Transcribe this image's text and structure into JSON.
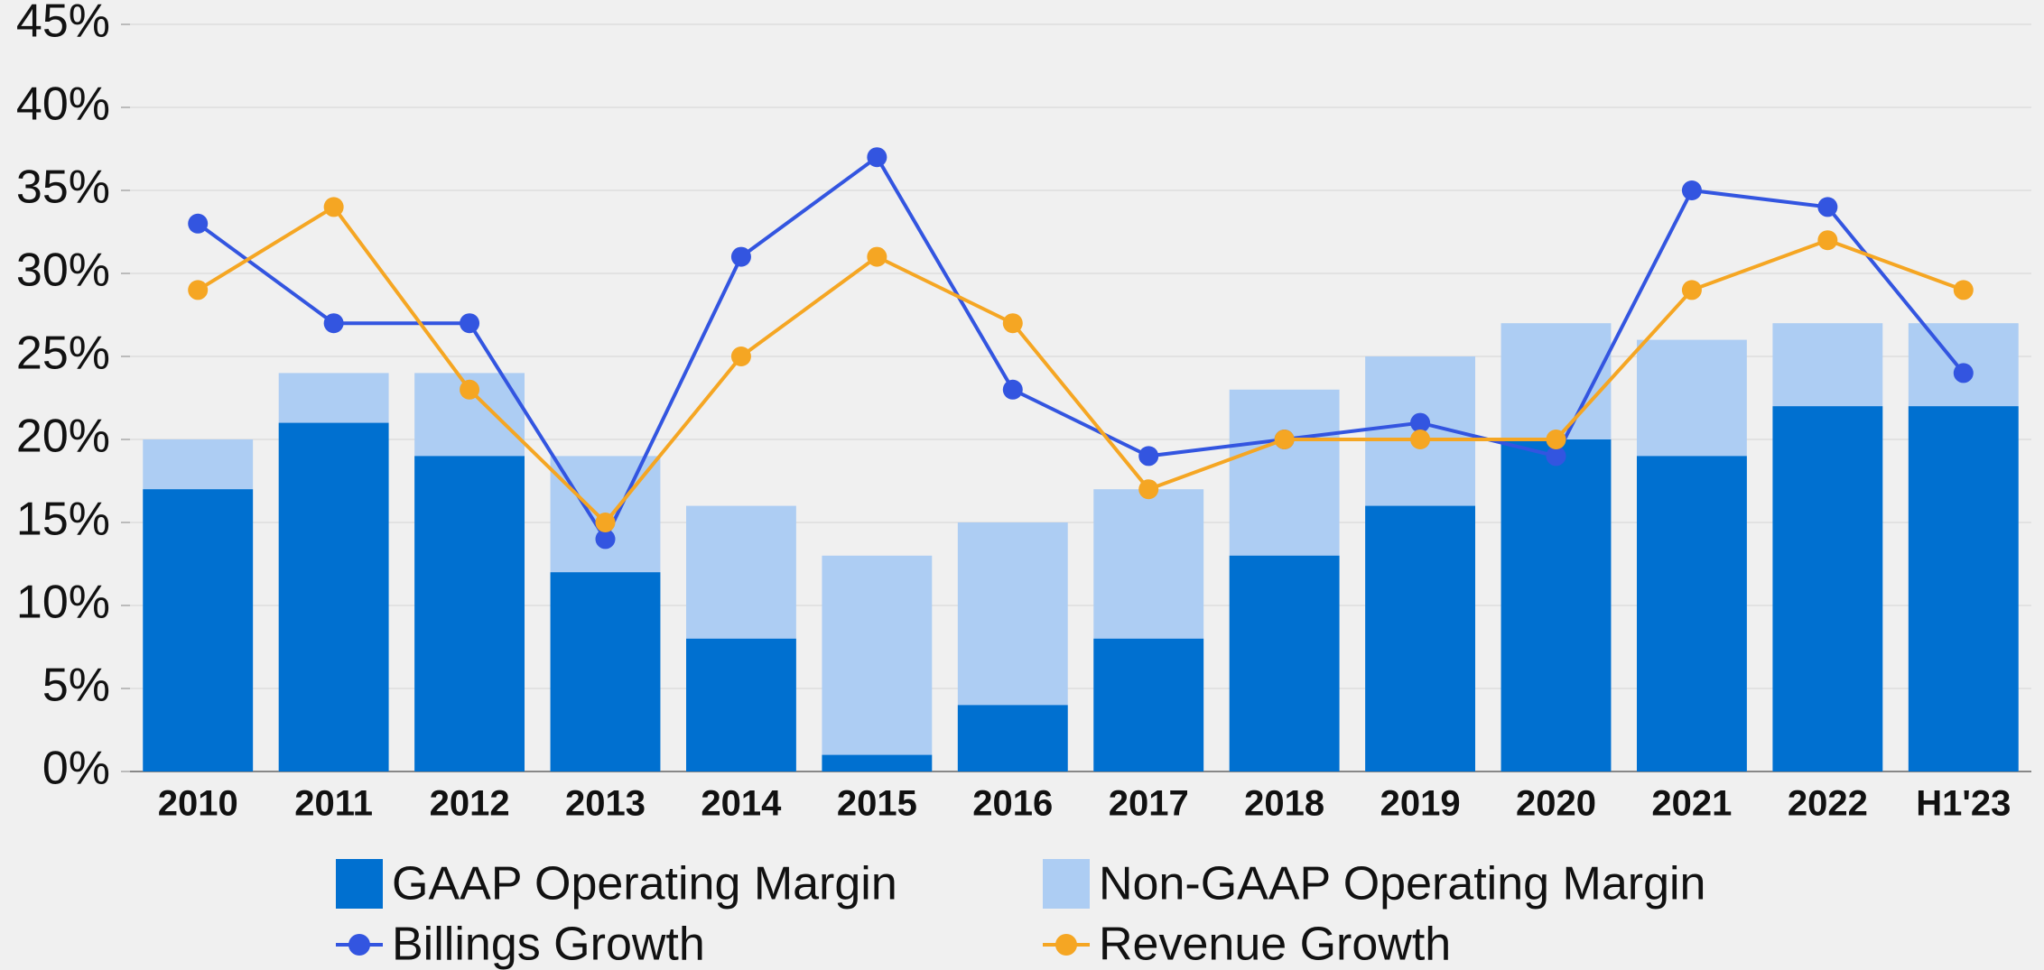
{
  "chart_data": {
    "type": "bar",
    "categories": [
      "2010",
      "2011",
      "2012",
      "2013",
      "2014",
      "2015",
      "2016",
      "2017",
      "2018",
      "2019",
      "2020",
      "2021",
      "2022",
      "H1'23"
    ],
    "series": [
      {
        "name": "GAAP Operating Margin",
        "type": "bar",
        "color": "#0070d0",
        "values": [
          17,
          21,
          19,
          12,
          8,
          1,
          4,
          8,
          13,
          16,
          20,
          19,
          22,
          22
        ]
      },
      {
        "name": "Non-GAAP Operating Margin",
        "type": "bar",
        "color": "#adcdf3",
        "values": [
          20,
          24,
          24,
          19,
          16,
          13,
          15,
          17,
          23,
          25,
          27,
          26,
          27,
          27
        ]
      },
      {
        "name": "Billings Growth",
        "type": "line",
        "color": "#3355e0",
        "values": [
          33,
          27,
          27,
          14,
          31,
          37,
          23,
          19,
          20,
          21,
          19,
          35,
          34,
          24
        ]
      },
      {
        "name": "Revenue Growth",
        "type": "line",
        "color": "#f5a623",
        "values": [
          29,
          34,
          23,
          15,
          25,
          31,
          27,
          17,
          20,
          20,
          20,
          29,
          32,
          29
        ]
      }
    ],
    "ylim": [
      0,
      45
    ],
    "yticks": [
      {
        "value": 0,
        "label": "0%"
      },
      {
        "value": 5,
        "label": "5%"
      },
      {
        "value": 10,
        "label": "10%"
      },
      {
        "value": 15,
        "label": "15%"
      },
      {
        "value": 20,
        "label": "20%"
      },
      {
        "value": 25,
        "label": "25%"
      },
      {
        "value": 30,
        "label": "30%"
      },
      {
        "value": 35,
        "label": "35%"
      },
      {
        "value": 40,
        "label": "40%"
      },
      {
        "value": 45,
        "label": "45%"
      }
    ],
    "grid": true
  }
}
